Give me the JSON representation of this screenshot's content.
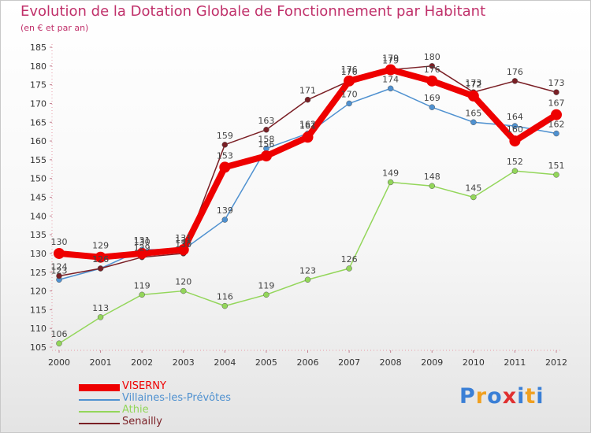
{
  "title": "Evolution de la Dotation Globale de Fonctionnement par Habitant",
  "subtitle": "(en € et par an)",
  "brand": {
    "letters": [
      "P",
      "r",
      "o",
      "x",
      "i",
      "t",
      "i"
    ],
    "colors": [
      "#3a7fd6",
      "#f0a020",
      "#3a7fd6",
      "#e03030",
      "#3a7fd6",
      "#f0a020",
      "#3a7fd6"
    ]
  },
  "chart_data": {
    "type": "line",
    "title": "Evolution de la Dotation Globale de Fonctionnement par Habitant",
    "subtitle": "(en € et par an)",
    "xlabel": "",
    "ylabel": "",
    "ylim": [
      105,
      185
    ],
    "y_ticks": [
      105,
      110,
      115,
      120,
      125,
      130,
      135,
      140,
      145,
      150,
      155,
      160,
      165,
      170,
      175,
      180,
      185
    ],
    "grid": false,
    "legend_position": "bottom-left",
    "categories": [
      "2000",
      "2001",
      "2002",
      "2003",
      "2004",
      "2005",
      "2006",
      "2007",
      "2008",
      "2009",
      "2010",
      "2011",
      "2012"
    ],
    "series": [
      {
        "name": "VISERNY",
        "color": "#ee0000",
        "values": [
          130,
          129,
          130,
          131,
          153,
          156,
          161,
          176,
          179,
          176,
          172,
          160,
          167
        ]
      },
      {
        "name": "Villaines-les-Prévôtes",
        "color": "#4f91d0",
        "values": [
          123,
          126,
          131,
          131,
          139,
          158,
          162,
          170,
          174,
          169,
          165,
          164,
          162
        ]
      },
      {
        "name": "Athie",
        "color": "#93d65a",
        "values": [
          106,
          113,
          119,
          120,
          116,
          119,
          123,
          126,
          149,
          148,
          145,
          152,
          151
        ]
      },
      {
        "name": "Senailly",
        "color": "#7a1f25",
        "values": [
          124,
          126,
          129,
          130,
          159,
          163,
          171,
          176,
          179,
          180,
          173,
          176,
          173
        ]
      }
    ]
  }
}
